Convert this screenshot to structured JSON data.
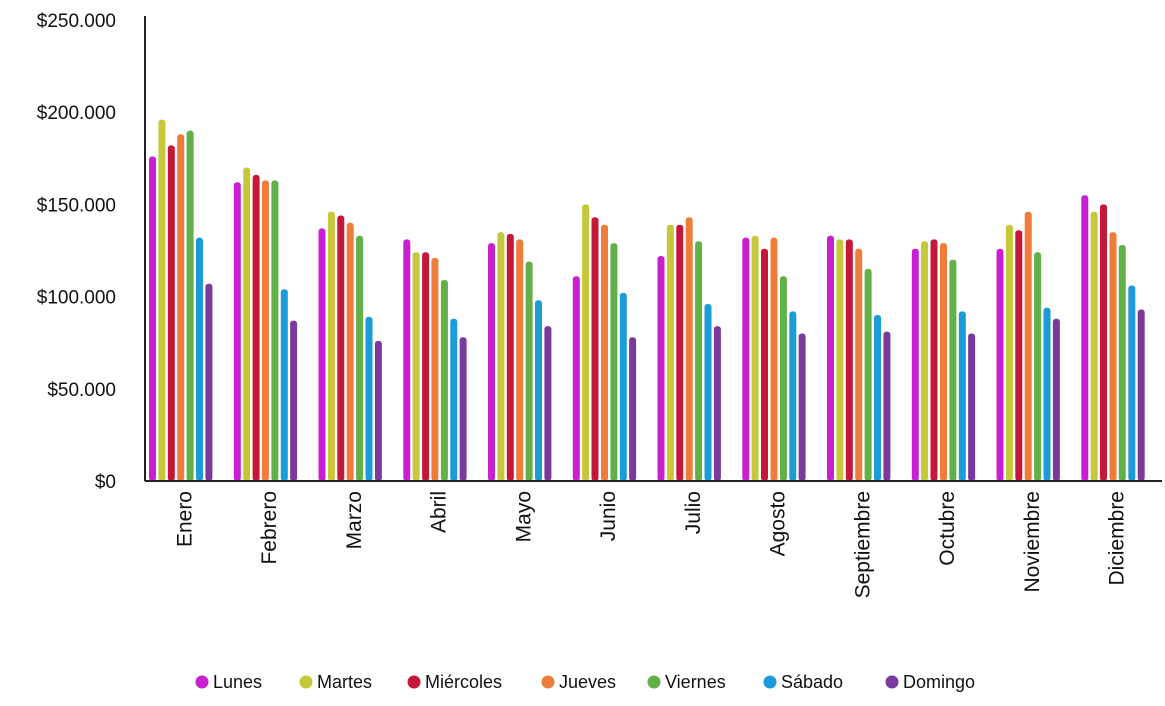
{
  "chart_data": {
    "type": "bar",
    "title": "",
    "xlabel": "",
    "ylabel": "",
    "ylim": [
      0,
      250000
    ],
    "yticks": [
      {
        "value": 0,
        "label": "$0"
      },
      {
        "value": 50000,
        "label": "$50.000"
      },
      {
        "value": 100000,
        "label": "$100.000"
      },
      {
        "value": 150000,
        "label": "$150.000"
      },
      {
        "value": 200000,
        "label": "$200.000"
      },
      {
        "value": 250000,
        "label": "$250.000"
      }
    ],
    "grid": false,
    "legend_position": "bottom",
    "categories": [
      "Enero",
      "Febrero",
      "Marzo",
      "Abril",
      "Mayo",
      "Junio",
      "Julio",
      "Agosto",
      "Septiembre",
      "Octubre",
      "Noviembre",
      "Diciembre"
    ],
    "series": [
      {
        "name": "Lunes",
        "color": "#c81fd0",
        "values": [
          176000,
          162000,
          137000,
          131000,
          129000,
          111000,
          122000,
          132000,
          133000,
          126000,
          126000,
          155000
        ]
      },
      {
        "name": "Martes",
        "color": "#c6c83a",
        "values": [
          196000,
          170000,
          146000,
          124000,
          135000,
          150000,
          139000,
          133000,
          131000,
          130000,
          139000,
          146000
        ]
      },
      {
        "name": "Miércoles",
        "color": "#c4173a",
        "values": [
          182000,
          166000,
          144000,
          124000,
          134000,
          143000,
          139000,
          126000,
          131000,
          131000,
          136000,
          150000
        ]
      },
      {
        "name": "Jueves",
        "color": "#ef7c3a",
        "values": [
          188000,
          163000,
          140000,
          121000,
          131000,
          139000,
          143000,
          132000,
          126000,
          129000,
          146000,
          135000
        ]
      },
      {
        "name": "Viernes",
        "color": "#62b048",
        "values": [
          190000,
          163000,
          133000,
          109000,
          119000,
          129000,
          130000,
          111000,
          115000,
          120000,
          124000,
          128000
        ]
      },
      {
        "name": "Sábado",
        "color": "#1b9bd8",
        "values": [
          132000,
          104000,
          89000,
          88000,
          98000,
          102000,
          96000,
          92000,
          90000,
          92000,
          94000,
          106000
        ]
      },
      {
        "name": "Domingo",
        "color": "#7a3a9c",
        "values": [
          107000,
          87000,
          76000,
          78000,
          84000,
          78000,
          84000,
          80000,
          81000,
          80000,
          88000,
          93000
        ]
      }
    ]
  }
}
